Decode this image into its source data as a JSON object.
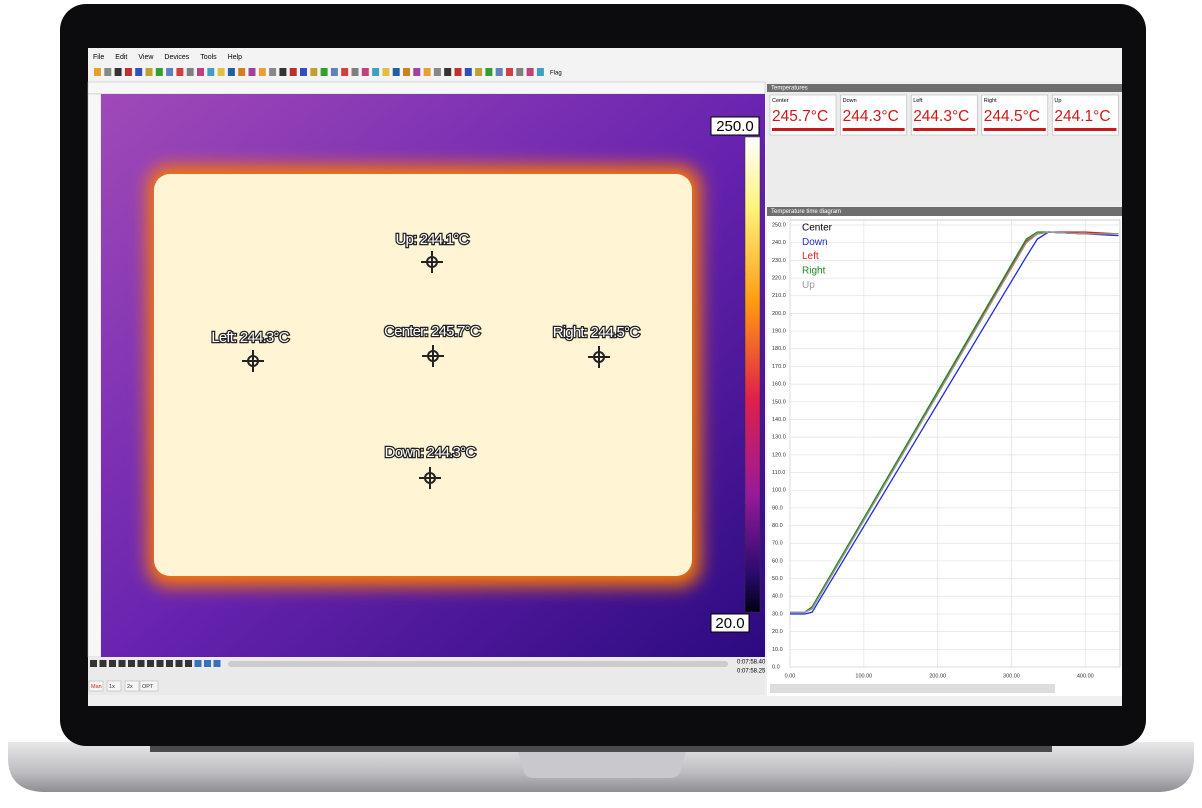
{
  "menu": [
    "File",
    "Edit",
    "View",
    "Devices",
    "Tools",
    "Help"
  ],
  "toolbar_label": "Flag",
  "temperatures": {
    "title": "Temperatures",
    "cards": [
      {
        "label": "Center",
        "value": "245.7°C"
      },
      {
        "label": "Down",
        "value": "244.3°C"
      },
      {
        "label": "Left",
        "value": "244.3°C"
      },
      {
        "label": "Right",
        "value": "244.5°C"
      },
      {
        "label": "Up",
        "value": "244.1°C"
      }
    ]
  },
  "image": {
    "scale_max": "250.0",
    "scale_min": "20.0",
    "spots": [
      "Up: 244.1°C",
      "Left: 244.3°C",
      "Center: 245.7°C",
      "Right: 244.5°C",
      "Down: 244.3°C"
    ]
  },
  "playback": {
    "times": [
      "0:07:58.40",
      "0:07:58.25"
    ],
    "buttons": [
      "Man",
      "1x",
      "2x",
      "OPT"
    ]
  },
  "chart_data": {
    "type": "line",
    "title": "Temperature time diagram",
    "x": [
      0,
      20,
      30,
      320,
      335,
      350,
      400,
      445
    ],
    "series": [
      {
        "name": "Center",
        "color": "#000000",
        "values": [
          31,
          31,
          33,
          240,
          245,
          246,
          245,
          245
        ]
      },
      {
        "name": "Down",
        "color": "#1f2bd8",
        "values": [
          30,
          30,
          31,
          232,
          242,
          246,
          245,
          244
        ]
      },
      {
        "name": "Left",
        "color": "#e02020",
        "values": [
          31,
          31,
          34,
          241,
          245,
          246,
          246,
          245
        ]
      },
      {
        "name": "Right",
        "color": "#1e8a1e",
        "values": [
          31,
          31,
          34,
          242,
          246,
          246,
          245,
          245
        ]
      },
      {
        "name": "Up",
        "color": "#9a9a9a",
        "values": [
          31,
          31,
          33,
          240,
          245,
          246,
          245,
          245
        ]
      }
    ],
    "xlim": [
      0,
      447
    ],
    "ylim": [
      0,
      250
    ],
    "xticks": [
      {
        "value": 0,
        "label": "0.00"
      },
      {
        "value": 100,
        "label": "100.00"
      },
      {
        "value": 200,
        "label": "200.00"
      },
      {
        "value": 300,
        "label": "300.00"
      },
      {
        "value": 400,
        "label": "400.00"
      }
    ],
    "yticks": [
      {
        "value": 0,
        "label": "0.0"
      },
      {
        "value": 10,
        "label": "10.0"
      },
      {
        "value": 20,
        "label": "20.0"
      },
      {
        "value": 30,
        "label": "30.0"
      },
      {
        "value": 40,
        "label": "40.0"
      },
      {
        "value": 50,
        "label": "50.0"
      },
      {
        "value": 60,
        "label": "60.0"
      },
      {
        "value": 70,
        "label": "70.0"
      },
      {
        "value": 80,
        "label": "80.0"
      },
      {
        "value": 90,
        "label": "90.0"
      },
      {
        "value": 100,
        "label": "100.0"
      },
      {
        "value": 110,
        "label": "110.0"
      },
      {
        "value": 120,
        "label": "120.0"
      },
      {
        "value": 130,
        "label": "130.0"
      },
      {
        "value": 140,
        "label": "140.0"
      },
      {
        "value": 150,
        "label": "150.0"
      },
      {
        "value": 160,
        "label": "160.0"
      },
      {
        "value": 170,
        "label": "170.0"
      },
      {
        "value": 180,
        "label": "180.0"
      },
      {
        "value": 190,
        "label": "190.0"
      },
      {
        "value": 200,
        "label": "200.0"
      },
      {
        "value": 210,
        "label": "210.0"
      },
      {
        "value": 220,
        "label": "220.0"
      },
      {
        "value": 230,
        "label": "230.0"
      },
      {
        "value": 240,
        "label": "240.0"
      },
      {
        "value": 250,
        "label": "250.0"
      }
    ],
    "grid": true,
    "legend": "top-left"
  }
}
